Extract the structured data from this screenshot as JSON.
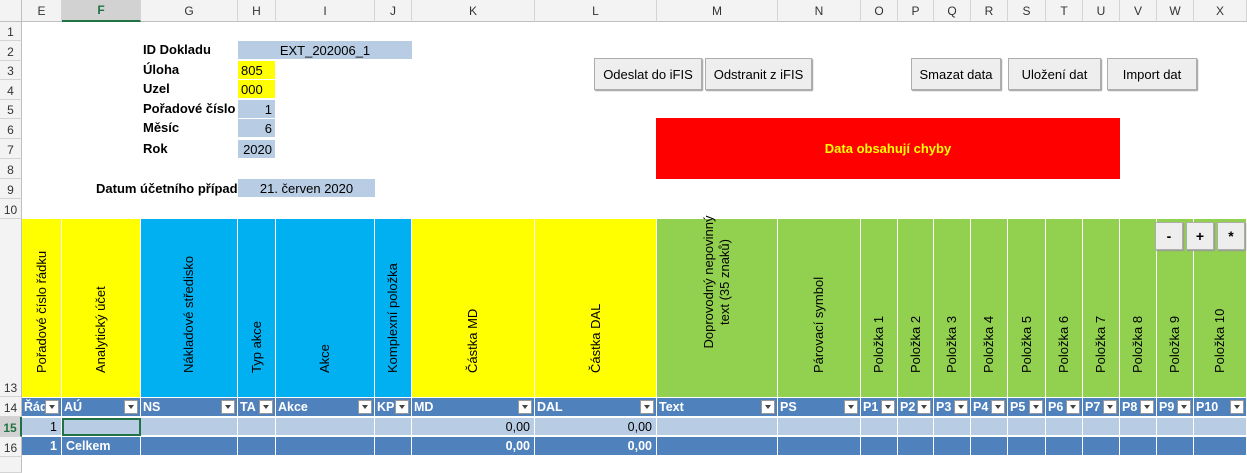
{
  "columns": [
    "E",
    "F",
    "G",
    "H",
    "I",
    "J",
    "K",
    "L",
    "M",
    "N",
    "O",
    "P",
    "Q",
    "R",
    "S",
    "T",
    "U",
    "V",
    "W",
    "X"
  ],
  "rows": [
    "1",
    "2",
    "3",
    "4",
    "5",
    "6",
    "7",
    "8",
    "9",
    "10",
    "13",
    "14",
    "15",
    "16"
  ],
  "selected_column": "F",
  "selected_row": "15",
  "header_form": {
    "id_label": "ID Dokladu",
    "id_value": "EXT_202006_1",
    "uloha_label": "Úloha",
    "uloha_value": "805",
    "uzel_label": "Uzel",
    "uzel_value": "000",
    "poradove_label": "Pořadové číslo",
    "poradove_value": "1",
    "mesic_label": "Měsíc",
    "mesic_value": "6",
    "rok_label": "Rok",
    "rok_value": "2020",
    "datum_label": "Datum účetního případu",
    "datum_value": "21. červen 2020"
  },
  "buttons": {
    "odeslat": "Odeslat do iFIS",
    "odstranit": "Odstranit z iFIS",
    "smazat": "Smazat data",
    "ulozeni": "Uložení dat",
    "import": "Import dat",
    "minus": "-",
    "plus": "+",
    "star": "*"
  },
  "error_text": "Data obsahují chyby",
  "column_headers": [
    {
      "title": "Pořadové číslo řádku",
      "field": "Řád"
    },
    {
      "title": "Analytický účet",
      "field": "AÚ"
    },
    {
      "title": "Nákladové středisko",
      "field": "NS"
    },
    {
      "title": "Typ akce",
      "field": "TA"
    },
    {
      "title": "Akce",
      "field": "Akce"
    },
    {
      "title": "Komplexní položka",
      "field": "KP"
    },
    {
      "title": "Částka MD",
      "field": "MD"
    },
    {
      "title": "Částka DAL",
      "field": "DAL"
    },
    {
      "title": "Doprovodný nepovinný text (35 znaků)",
      "field": "Text"
    },
    {
      "title": "Párovací symbol",
      "field": "PS"
    },
    {
      "title": "Položka 1",
      "field": "P1"
    },
    {
      "title": "Položka 2",
      "field": "P2"
    },
    {
      "title": "Položka 3",
      "field": "P3"
    },
    {
      "title": "Položka 4",
      "field": "P4"
    },
    {
      "title": "Položka 5",
      "field": "P5"
    },
    {
      "title": "Položka 6",
      "field": "P6"
    },
    {
      "title": "Položka 7",
      "field": "P7"
    },
    {
      "title": "Položka 8",
      "field": "P8"
    },
    {
      "title": "Položka 9",
      "field": "P9"
    },
    {
      "title": "Položka 10",
      "field": "P10"
    }
  ],
  "data_row": {
    "rad": "1",
    "md": "0,00",
    "dal": "0,00"
  },
  "total_row": {
    "rad": "1",
    "label": "Celkem",
    "md": "0,00",
    "dal": "0,00"
  }
}
